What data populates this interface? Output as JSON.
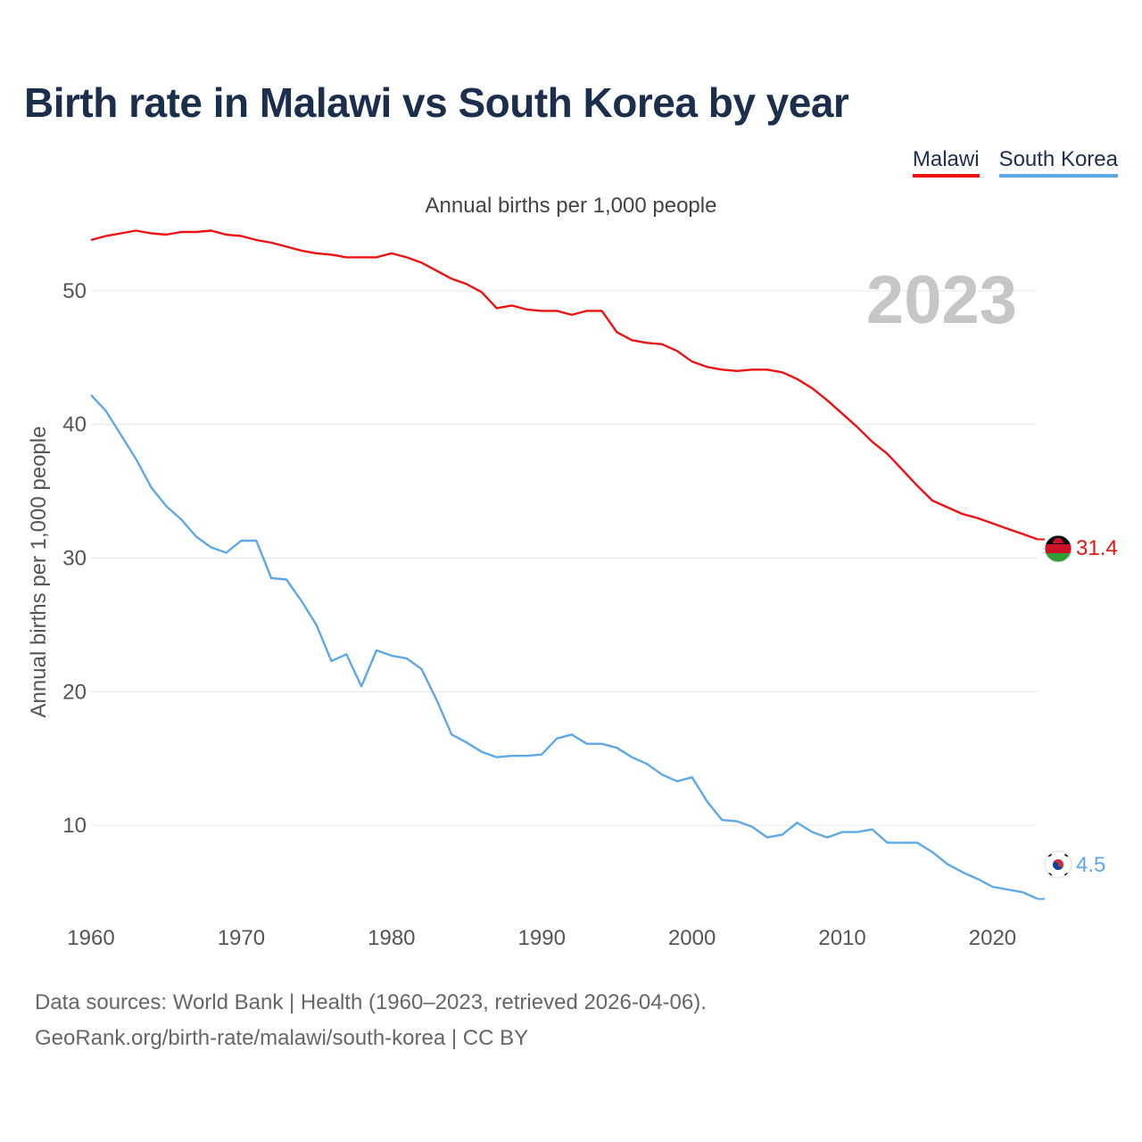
{
  "title": "Birth rate in Malawi vs South Korea by year",
  "subtitle": "Annual births per 1,000 people",
  "legend": [
    {
      "label": "Malawi",
      "color": "#ee1111"
    },
    {
      "label": "South Korea",
      "color": "#5ea8e8"
    }
  ],
  "year_label": "2023",
  "footer": {
    "line1": "Data sources: World Bank | Health (1960–2023, retrieved 2026-04-06).",
    "line2": "GeoRank.org/birth-rate/malawi/south-korea | CC BY"
  },
  "chart_data": {
    "type": "line",
    "title": "Birth rate in Malawi vs South Korea by year",
    "ylabel": "Annual births per 1,000 people",
    "xlabel": "",
    "xlim": [
      1960,
      2023
    ],
    "ylim": [
      3,
      56
    ],
    "x_ticks": [
      1960,
      1970,
      1980,
      1990,
      2000,
      2010,
      2020
    ],
    "y_ticks": [
      10,
      20,
      30,
      40,
      50
    ],
    "grid": true,
    "series": [
      {
        "name": "Malawi",
        "color": "#ee1111",
        "end_label": "31.4",
        "start_year": 1960,
        "values": [
          53.8,
          54.1,
          54.3,
          54.5,
          54.3,
          54.2,
          54.4,
          54.4,
          54.5,
          54.2,
          54.1,
          53.8,
          53.6,
          53.3,
          53.0,
          52.8,
          52.7,
          52.5,
          52.5,
          52.5,
          52.8,
          52.5,
          52.1,
          51.5,
          50.9,
          50.5,
          49.9,
          48.7,
          48.9,
          48.6,
          48.5,
          48.5,
          48.2,
          48.5,
          48.5,
          46.9,
          46.3,
          46.1,
          46.0,
          45.5,
          44.7,
          44.3,
          44.1,
          44.0,
          44.1,
          44.1,
          43.9,
          43.4,
          42.7,
          41.8,
          40.8,
          39.8,
          38.7,
          37.8,
          36.6,
          35.4,
          34.3,
          33.8,
          33.3,
          33.0,
          32.6,
          32.2,
          31.8,
          31.4
        ]
      },
      {
        "name": "South Korea",
        "color": "#5ea8e8",
        "end_label": "4.5",
        "start_year": 1960,
        "values": [
          42.2,
          41.0,
          39.2,
          37.4,
          35.3,
          33.9,
          32.9,
          31.6,
          30.8,
          30.4,
          31.3,
          31.3,
          28.5,
          28.4,
          26.8,
          25.0,
          22.3,
          22.8,
          20.4,
          23.1,
          22.7,
          22.5,
          21.7,
          19.4,
          16.8,
          16.2,
          15.5,
          15.1,
          15.2,
          15.2,
          15.3,
          16.5,
          16.8,
          16.1,
          16.1,
          15.8,
          15.1,
          14.6,
          13.8,
          13.3,
          13.6,
          11.8,
          10.4,
          10.3,
          9.9,
          9.1,
          9.3,
          10.2,
          9.5,
          9.1,
          9.5,
          9.5,
          9.7,
          8.7,
          8.7,
          8.7,
          8.0,
          7.1,
          6.5,
          6.0,
          5.4,
          5.2,
          5.0,
          4.5
        ]
      }
    ]
  }
}
